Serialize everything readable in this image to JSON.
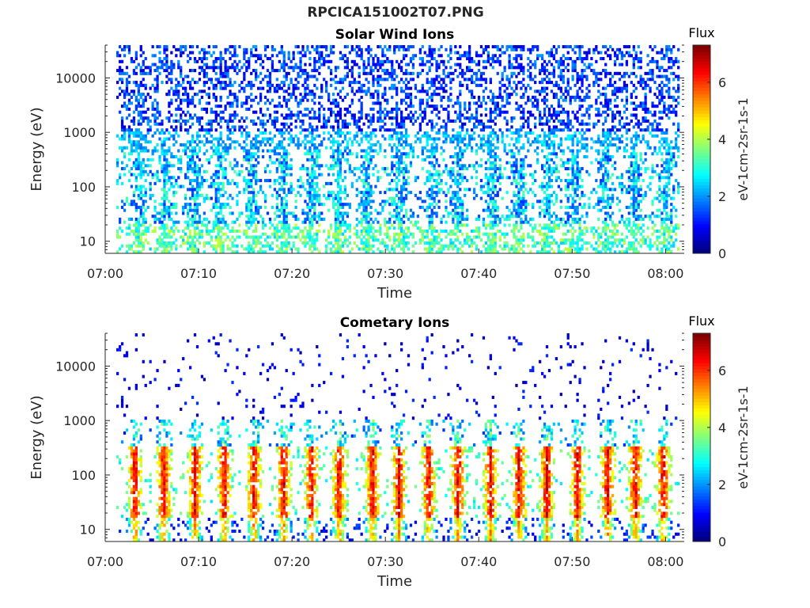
{
  "figure": {
    "title": "RPCICA151002T07.PNG"
  },
  "colorbar": {
    "title": "Flux",
    "label": "eV-1cm-2sr-1s-1",
    "ticks": [
      "0",
      "2",
      "4",
      "6"
    ],
    "range": [
      0,
      7.3
    ],
    "colormap": "jet"
  },
  "chart_data": [
    {
      "type": "heatmap",
      "title": "Solar Wind Ions",
      "xlabel": "Time",
      "ylabel": "Energy (eV)",
      "x_ticks": [
        "07:00",
        "07:10",
        "07:20",
        "07:30",
        "07:40",
        "07:50",
        "08:00"
      ],
      "x_range": [
        "07:00",
        "08:02"
      ],
      "y_scale": "log",
      "y_ticks": [
        10,
        100,
        1000,
        10000
      ],
      "y_range": [
        6,
        40000
      ],
      "z_range": [
        0,
        7.3
      ],
      "bursts_minutes": [
        3.4,
        6.2,
        9.3,
        12.0,
        15.5,
        18.9,
        22.0,
        25.0,
        28.0,
        31.5,
        35.1,
        37.8,
        41.6,
        44.5,
        47.6,
        50.4,
        53.8,
        57.0,
        60.4
      ],
      "description_of_values": "Sparse low-flux (0-3) counts at 1000-40000 eV; enhanced flux (2-4.5) in bursts below ~500 eV"
    },
    {
      "type": "heatmap",
      "title": "Cometary Ions",
      "xlabel": "Time",
      "ylabel": "Energy (eV)",
      "x_ticks": [
        "07:00",
        "07:10",
        "07:20",
        "07:30",
        "07:40",
        "07:50",
        "08:00"
      ],
      "x_range": [
        "07:00",
        "08:02"
      ],
      "y_scale": "log",
      "y_ticks": [
        10,
        100,
        1000,
        10000
      ],
      "y_range": [
        6,
        40000
      ],
      "z_range": [
        0,
        7.3
      ],
      "bursts_minutes": [
        2.9,
        6.0,
        9.4,
        12.6,
        15.8,
        19.0,
        22.0,
        25.0,
        28.6,
        31.5,
        34.7,
        37.9,
        41.4,
        44.5,
        47.5,
        50.8,
        54.1,
        57.1,
        60.1
      ],
      "description_of_values": "Bursts of cometary ions peaking at flux 5-7 between 20 and 100 eV, extending up to ~800 eV; sparse counts above 1000 eV"
    }
  ]
}
